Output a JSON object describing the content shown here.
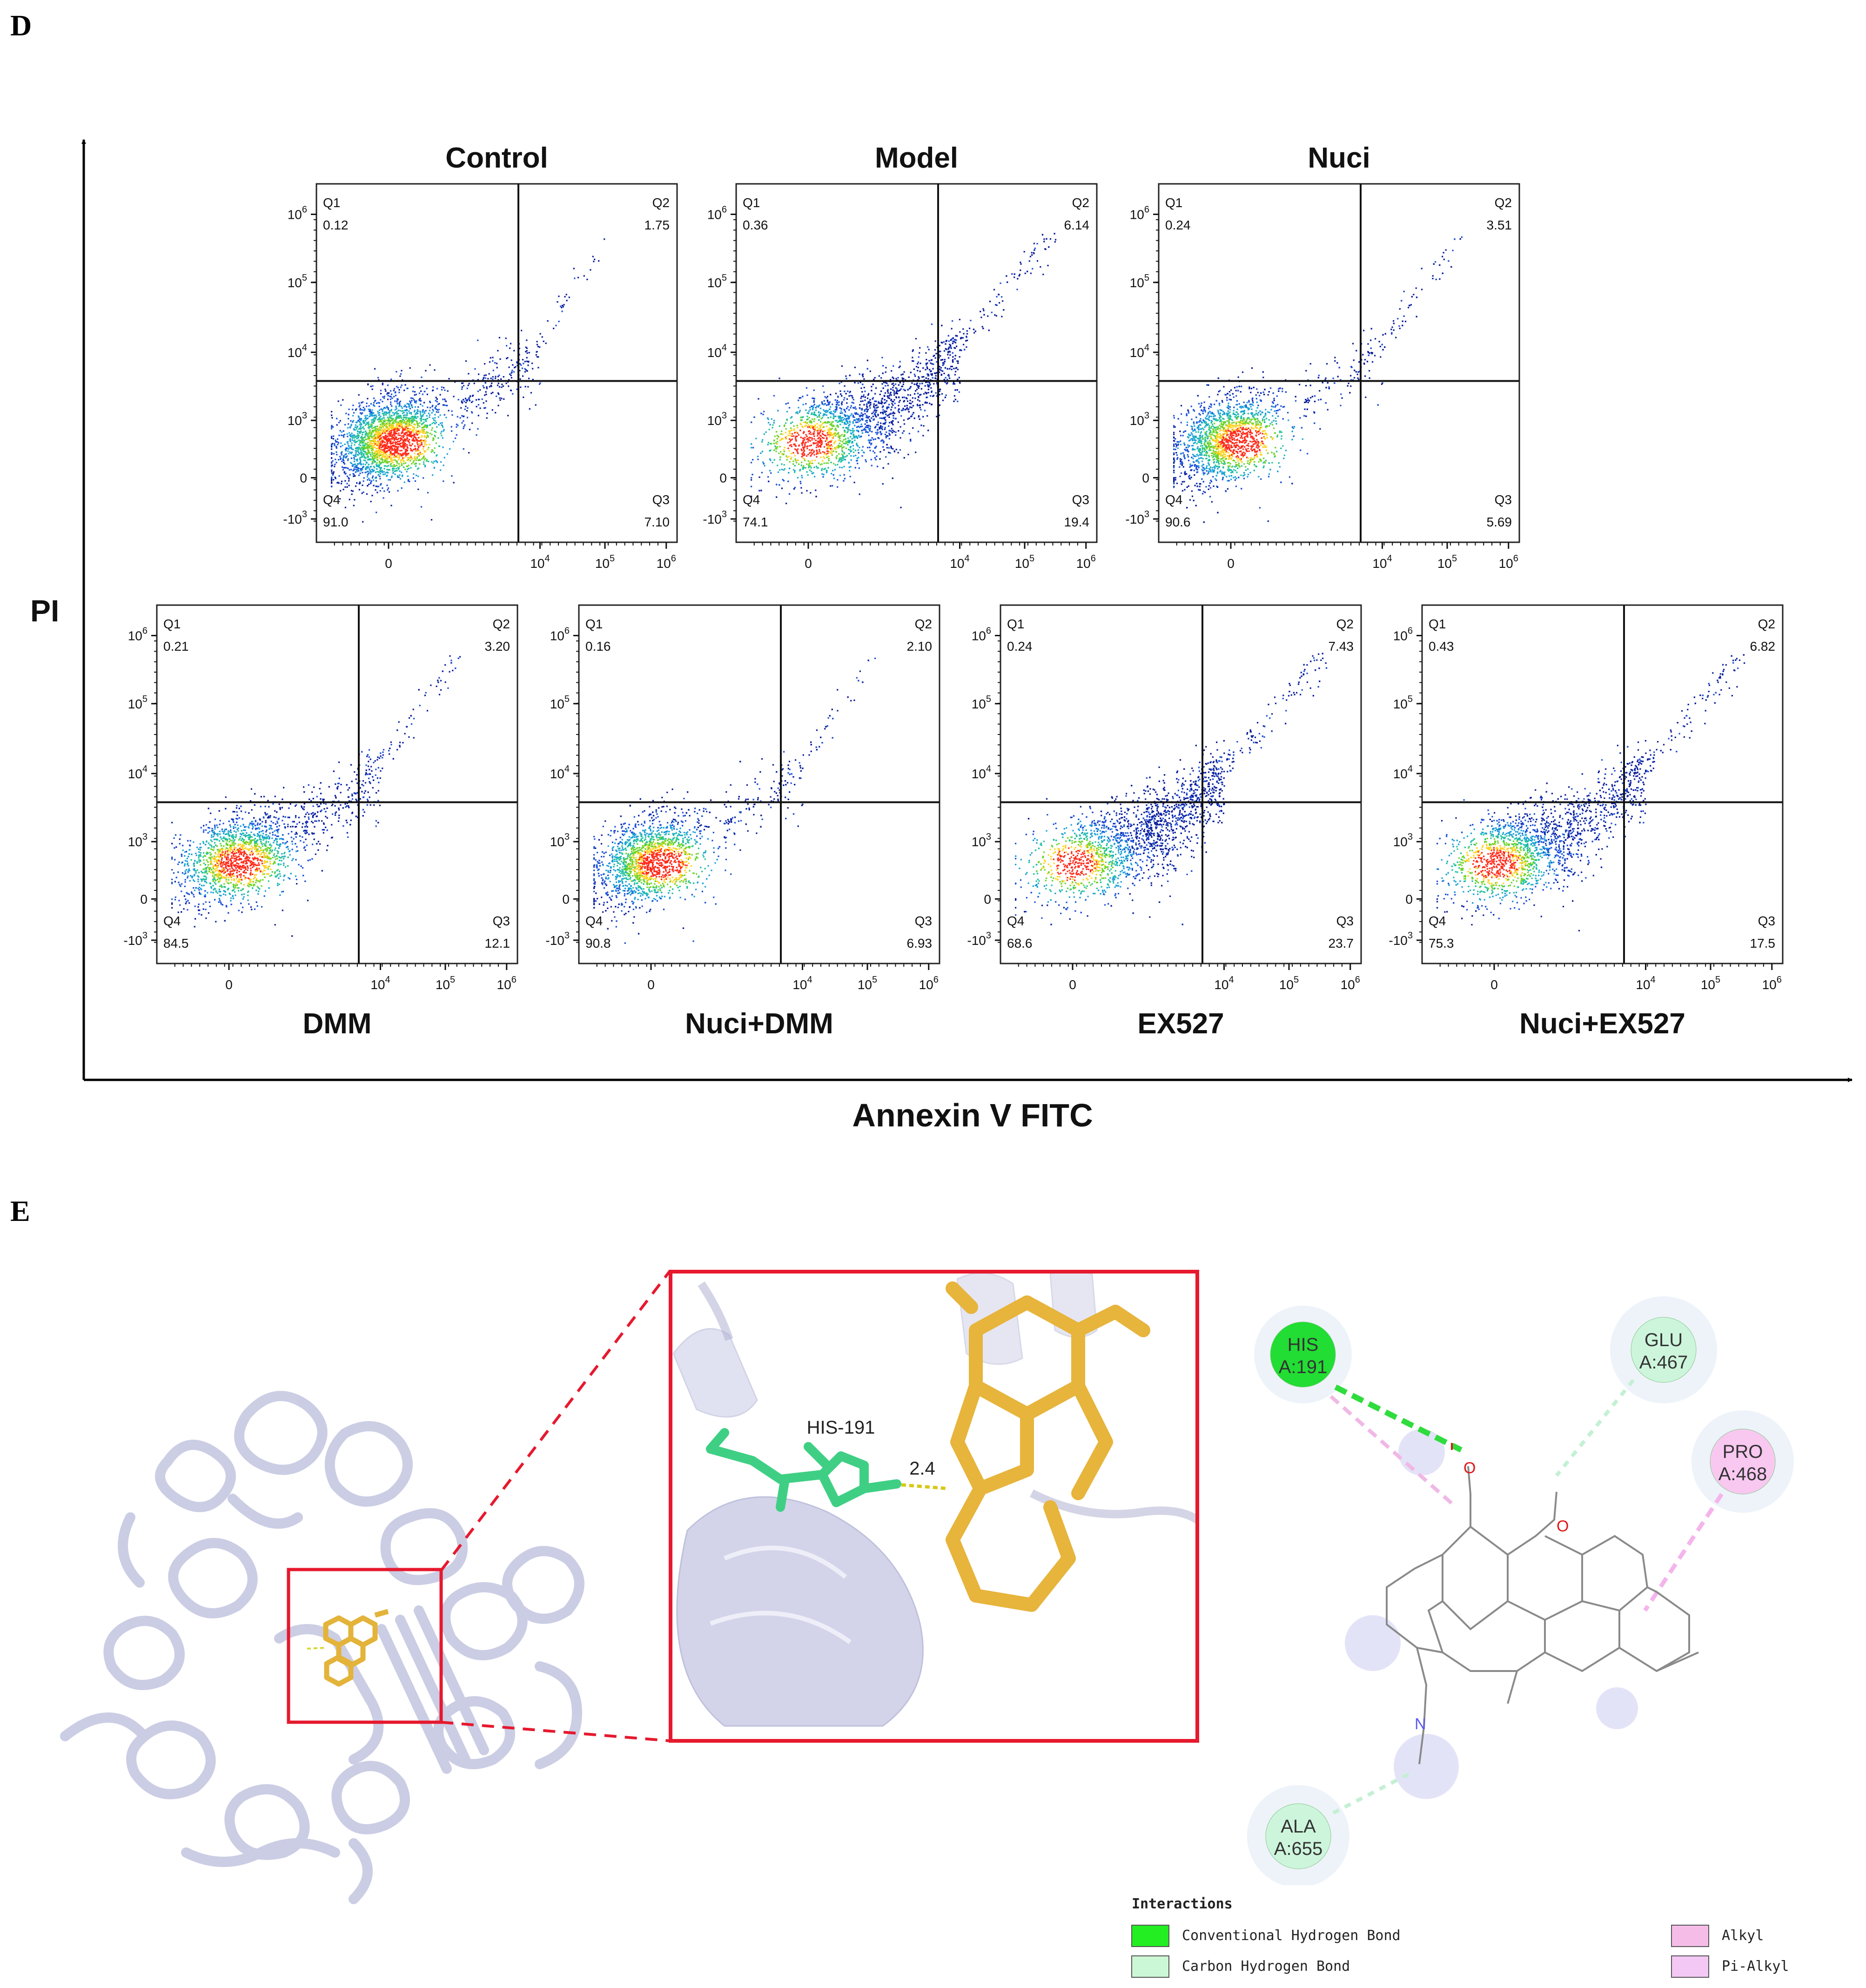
{
  "panel_d": {
    "letter": "D",
    "y_axis_label": "PI",
    "x_axis_label": "Annexin V FITC"
  },
  "panel_e": {
    "letter": "E",
    "zoom_residue_label": "HIS-191",
    "zoom_distance_label": "2.4",
    "residues": [
      {
        "name": "HIS",
        "id": "A:191",
        "interaction": "Conventional Hydrogen Bond",
        "color": "#22dd33"
      },
      {
        "name": "GLU",
        "id": "A:467",
        "interaction": "Carbon Hydrogen Bond",
        "color": "#cdf5dc"
      },
      {
        "name": "PRO",
        "id": "A:468",
        "interaction": "Pi-Alkyl",
        "color": "#f8c8f0"
      },
      {
        "name": "ALA",
        "id": "A:655",
        "interaction": "Carbon Hydrogen Bond",
        "color": "#cdf5dc"
      }
    ],
    "legend": {
      "title": "Interactions",
      "items": [
        {
          "label": "Conventional Hydrogen Bond",
          "color": "#22ee22"
        },
        {
          "label": "Carbon Hydrogen Bond",
          "color": "#ccf7d6"
        },
        {
          "label": "Alkyl",
          "color": "#f6bce8"
        },
        {
          "label": "Pi-Alkyl",
          "color": "#f4c8f4"
        }
      ]
    },
    "atom_labels": {
      "oxygen": "O",
      "nitrogen": "N"
    }
  },
  "chart_data": [
    {
      "type": "scatter",
      "title": "Control",
      "quadrants": {
        "Q1": "0.12",
        "Q2": "1.75",
        "Q3": "7.10",
        "Q4": "91.0"
      },
      "x_ticks": [
        "0",
        "10^4",
        "10^5",
        "10^6"
      ],
      "y_ticks": [
        "10^6",
        "10^5",
        "10^4",
        "10^3",
        "0",
        "-10^3"
      ],
      "gate": {
        "x": 5000,
        "y": 3000
      }
    },
    {
      "type": "scatter",
      "title": "Model",
      "quadrants": {
        "Q1": "0.36",
        "Q2": "6.14",
        "Q3": "19.4",
        "Q4": "74.1"
      },
      "x_ticks": [
        "0",
        "10^4",
        "10^5",
        "10^6"
      ],
      "y_ticks": [
        "10^6",
        "10^5",
        "10^4",
        "10^3",
        "0",
        "-10^3"
      ],
      "gate": {
        "x": 5000,
        "y": 3000
      }
    },
    {
      "type": "scatter",
      "title": "Nuci",
      "quadrants": {
        "Q1": "0.24",
        "Q2": "3.51",
        "Q3": "5.69",
        "Q4": "90.6"
      },
      "x_ticks": [
        "0",
        "10^4",
        "10^5",
        "10^6"
      ],
      "y_ticks": [
        "10^6",
        "10^5",
        "10^4",
        "10^3",
        "0",
        "-10^3"
      ],
      "gate": {
        "x": 5000,
        "y": 3000
      }
    },
    {
      "type": "scatter",
      "title": "DMM",
      "quadrants": {
        "Q1": "0.21",
        "Q2": "3.20",
        "Q3": "12.1",
        "Q4": "84.5"
      },
      "x_ticks": [
        "0",
        "10^4",
        "10^5",
        "10^6"
      ],
      "y_ticks": [
        "10^6",
        "10^5",
        "10^4",
        "10^3",
        "0",
        "-10^3"
      ],
      "gate": {
        "x": 5000,
        "y": 3000
      }
    },
    {
      "type": "scatter",
      "title": "Nuci+DMM",
      "quadrants": {
        "Q1": "0.16",
        "Q2": "2.10",
        "Q3": "6.93",
        "Q4": "90.8"
      },
      "x_ticks": [
        "0",
        "10^4",
        "10^5",
        "10^6"
      ],
      "y_ticks": [
        "10^6",
        "10^5",
        "10^4",
        "10^3",
        "0",
        "-10^3"
      ],
      "gate": {
        "x": 5000,
        "y": 3000
      }
    },
    {
      "type": "scatter",
      "title": "EX527",
      "quadrants": {
        "Q1": "0.24",
        "Q2": "7.43",
        "Q3": "23.7",
        "Q4": "68.6"
      },
      "x_ticks": [
        "0",
        "10^4",
        "10^5",
        "10^6"
      ],
      "y_ticks": [
        "10^6",
        "10^5",
        "10^4",
        "10^3",
        "0",
        "-10^3"
      ],
      "gate": {
        "x": 5000,
        "y": 3000
      }
    },
    {
      "type": "scatter",
      "title": "Nuci+EX527",
      "quadrants": {
        "Q1": "0.43",
        "Q2": "6.82",
        "Q3": "17.5",
        "Q4": "75.3"
      },
      "x_ticks": [
        "0",
        "10^4",
        "10^5",
        "10^6"
      ],
      "y_ticks": [
        "10^6",
        "10^5",
        "10^4",
        "10^3",
        "0",
        "-10^3"
      ],
      "gate": {
        "x": 5000,
        "y": 3000
      }
    }
  ]
}
